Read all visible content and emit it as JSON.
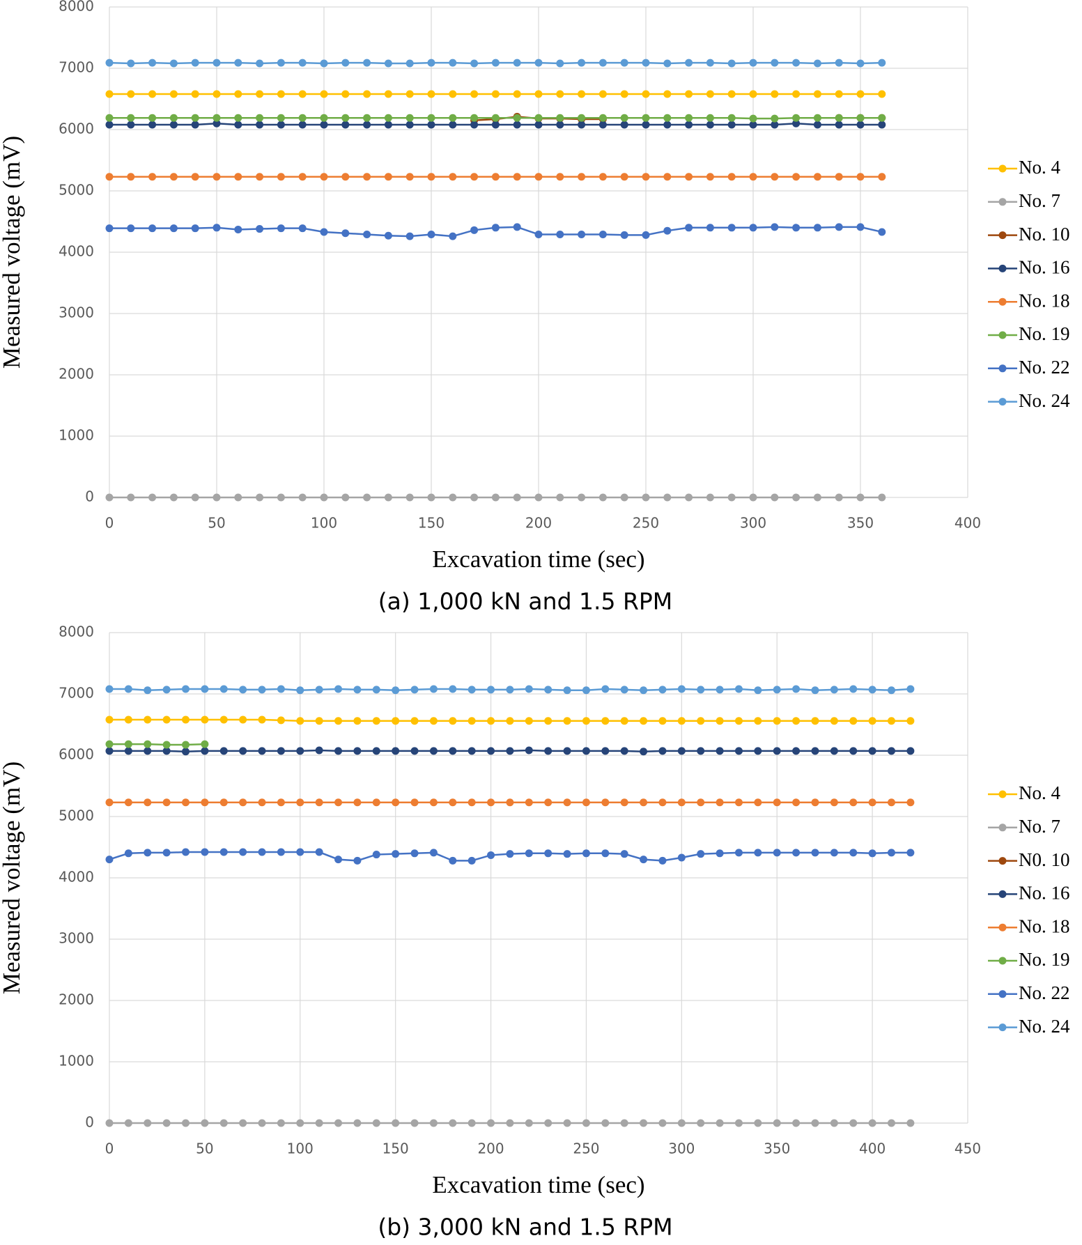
{
  "chart_data": [
    {
      "type": "line",
      "caption": "(a) 1,000 kN and 1.5 RPM",
      "x_label": "Excavation time (sec)",
      "y_label": "Measured voltage (mV)",
      "x": [
        0,
        10,
        20,
        30,
        40,
        50,
        60,
        70,
        80,
        90,
        100,
        110,
        120,
        130,
        140,
        150,
        160,
        170,
        180,
        190,
        200,
        210,
        220,
        230,
        240,
        250,
        260,
        270,
        280,
        290,
        300,
        310,
        320,
        330,
        340,
        350,
        360
      ],
      "xlim": [
        0,
        400
      ],
      "xticks": [
        0,
        50,
        100,
        150,
        200,
        250,
        300,
        350,
        400
      ],
      "ylim": [
        0,
        8000
      ],
      "yticks": [
        0,
        1000,
        2000,
        3000,
        4000,
        5000,
        6000,
        7000,
        8000
      ],
      "grid": true,
      "legend": "right",
      "series": [
        {
          "name": "No. 4",
          "color": "#FFC000",
          "values": [
            6580,
            6580,
            6580,
            6580,
            6580,
            6580,
            6580,
            6580,
            6580,
            6580,
            6580,
            6580,
            6580,
            6580,
            6580,
            6580,
            6580,
            6580,
            6580,
            6580,
            6580,
            6580,
            6580,
            6580,
            6580,
            6580,
            6580,
            6580,
            6580,
            6580,
            6580,
            6580,
            6580,
            6580,
            6580,
            6580,
            6580
          ]
        },
        {
          "name": "No. 7",
          "color": "#A5A5A5",
          "values": [
            0,
            0,
            0,
            0,
            0,
            0,
            0,
            0,
            0,
            0,
            0,
            0,
            0,
            0,
            0,
            0,
            0,
            0,
            0,
            0,
            0,
            0,
            0,
            0,
            0,
            0,
            0,
            0,
            0,
            0,
            0,
            0,
            0,
            0,
            0,
            0,
            0
          ]
        },
        {
          "name": "No. 10",
          "color": "#9E480E",
          "values": [
            null,
            null,
            null,
            null,
            null,
            null,
            null,
            null,
            null,
            null,
            null,
            null,
            null,
            null,
            null,
            null,
            null,
            6150,
            6170,
            6210,
            6180,
            6180,
            6170,
            6170,
            null,
            null,
            null,
            null,
            null,
            null,
            null,
            null,
            null,
            null,
            6190,
            6190,
            6190
          ]
        },
        {
          "name": "No. 16",
          "color": "#264478",
          "values": [
            6080,
            6080,
            6080,
            6080,
            6080,
            6100,
            6080,
            6080,
            6080,
            6080,
            6080,
            6080,
            6080,
            6080,
            6080,
            6080,
            6080,
            6080,
            6080,
            6080,
            6080,
            6080,
            6080,
            6080,
            6080,
            6080,
            6080,
            6080,
            6080,
            6080,
            6080,
            6080,
            6100,
            6080,
            6080,
            6080,
            6080
          ]
        },
        {
          "name": "No. 18",
          "color": "#ED7D31",
          "values": [
            5230,
            5230,
            5230,
            5230,
            5230,
            5230,
            5230,
            5230,
            5230,
            5230,
            5230,
            5230,
            5230,
            5230,
            5230,
            5230,
            5230,
            5230,
            5230,
            5230,
            5230,
            5230,
            5230,
            5230,
            5230,
            5230,
            5230,
            5230,
            5230,
            5230,
            5230,
            5230,
            5230,
            5230,
            5230,
            5230,
            5230
          ]
        },
        {
          "name": "No. 19",
          "color": "#70AD47",
          "values": [
            6190,
            6190,
            6190,
            6190,
            6190,
            6190,
            6190,
            6190,
            6190,
            6190,
            6190,
            6190,
            6190,
            6190,
            6190,
            6190,
            6190,
            6190,
            6190,
            6190,
            6190,
            6190,
            6190,
            6190,
            6190,
            6190,
            6190,
            6190,
            6190,
            6190,
            6180,
            6180,
            6190,
            6190,
            6190,
            6190,
            6190
          ]
        },
        {
          "name": "No. 22",
          "color": "#4472C4",
          "values": [
            4390,
            4390,
            4390,
            4390,
            4390,
            4400,
            4370,
            4380,
            4390,
            4390,
            4330,
            4310,
            4290,
            4270,
            4260,
            4290,
            4260,
            4360,
            4400,
            4410,
            4290,
            4290,
            4290,
            4290,
            4280,
            4280,
            4350,
            4400,
            4400,
            4400,
            4400,
            4410,
            4400,
            4400,
            4410,
            4410,
            4330
          ]
        },
        {
          "name": "No. 24",
          "color": "#5B9BD5",
          "values": [
            7090,
            7080,
            7090,
            7080,
            7090,
            7090,
            7090,
            7080,
            7090,
            7090,
            7080,
            7090,
            7090,
            7080,
            7080,
            7090,
            7090,
            7080,
            7090,
            7090,
            7090,
            7080,
            7090,
            7090,
            7090,
            7090,
            7080,
            7090,
            7090,
            7080,
            7090,
            7090,
            7090,
            7080,
            7090,
            7080,
            7090
          ]
        }
      ]
    },
    {
      "type": "line",
      "caption": "(b) 3,000 kN and 1.5 RPM",
      "x_label": "Excavation time (sec)",
      "y_label": "Measured voltage (mV)",
      "x": [
        0,
        10,
        20,
        30,
        40,
        50,
        60,
        70,
        80,
        90,
        100,
        110,
        120,
        130,
        140,
        150,
        160,
        170,
        180,
        190,
        200,
        210,
        220,
        230,
        240,
        250,
        260,
        270,
        280,
        290,
        300,
        310,
        320,
        330,
        340,
        350,
        360,
        370,
        380,
        390,
        400,
        410,
        420
      ],
      "xlim": [
        0,
        450
      ],
      "xticks": [
        0,
        50,
        100,
        150,
        200,
        250,
        300,
        350,
        400,
        450
      ],
      "ylim": [
        0,
        8000
      ],
      "yticks": [
        0,
        1000,
        2000,
        3000,
        4000,
        5000,
        6000,
        7000,
        8000
      ],
      "grid": true,
      "legend": "right",
      "series": [
        {
          "name": "No. 4",
          "color": "#FFC000",
          "values": [
            6580,
            6580,
            6580,
            6580,
            6580,
            6580,
            6580,
            6580,
            6580,
            6570,
            6560,
            6560,
            6560,
            6560,
            6560,
            6560,
            6560,
            6560,
            6560,
            6560,
            6560,
            6560,
            6560,
            6560,
            6560,
            6560,
            6560,
            6560,
            6560,
            6560,
            6560,
            6560,
            6560,
            6560,
            6560,
            6560,
            6560,
            6560,
            6560,
            6560,
            6560,
            6560,
            6560
          ]
        },
        {
          "name": "No. 7",
          "color": "#A5A5A5",
          "values": [
            0,
            0,
            0,
            0,
            0,
            0,
            0,
            0,
            0,
            0,
            0,
            0,
            0,
            0,
            0,
            0,
            0,
            0,
            0,
            0,
            0,
            0,
            0,
            0,
            0,
            0,
            0,
            0,
            0,
            0,
            0,
            0,
            0,
            0,
            0,
            0,
            0,
            0,
            0,
            0,
            0,
            0,
            0
          ]
        },
        {
          "name": "N0. 10",
          "color": "#9E480E",
          "values": [
            null,
            null,
            null,
            null,
            null,
            null,
            null,
            null,
            null,
            null,
            null,
            null,
            null,
            null,
            null,
            null,
            null,
            null,
            null,
            null,
            null,
            null,
            null,
            null,
            null,
            null,
            null,
            null,
            null,
            null,
            null,
            null,
            null,
            null,
            null,
            null,
            null,
            null,
            null,
            null,
            null,
            null,
            null
          ]
        },
        {
          "name": "No. 16",
          "color": "#264478",
          "values": [
            6070,
            6070,
            6070,
            6070,
            6060,
            6070,
            6070,
            6070,
            6070,
            6070,
            6070,
            6080,
            6070,
            6070,
            6070,
            6070,
            6070,
            6070,
            6070,
            6070,
            6070,
            6070,
            6080,
            6070,
            6070,
            6070,
            6070,
            6070,
            6060,
            6070,
            6070,
            6070,
            6070,
            6070,
            6070,
            6070,
            6070,
            6070,
            6070,
            6070,
            6070,
            6070,
            6070
          ]
        },
        {
          "name": "No. 18",
          "color": "#ED7D31",
          "values": [
            5230,
            5230,
            5230,
            5230,
            5230,
            5230,
            5230,
            5230,
            5230,
            5230,
            5230,
            5230,
            5230,
            5230,
            5230,
            5230,
            5230,
            5230,
            5230,
            5230,
            5230,
            5230,
            5230,
            5230,
            5230,
            5230,
            5230,
            5230,
            5230,
            5230,
            5230,
            5230,
            5230,
            5230,
            5230,
            5230,
            5230,
            5230,
            5230,
            5230,
            5230,
            5230,
            5230
          ]
        },
        {
          "name": "No. 19",
          "color": "#70AD47",
          "values": [
            6180,
            6180,
            6180,
            6170,
            6170,
            6180,
            null,
            null,
            null,
            null,
            null,
            null,
            null,
            null,
            null,
            null,
            null,
            null,
            null,
            null,
            null,
            null,
            null,
            null,
            null,
            null,
            null,
            null,
            null,
            null,
            null,
            null,
            null,
            null,
            null,
            null,
            null,
            null,
            null,
            null,
            null,
            null,
            null
          ]
        },
        {
          "name": "No. 22",
          "color": "#4472C4",
          "values": [
            4300,
            4400,
            4410,
            4410,
            4420,
            4420,
            4420,
            4420,
            4420,
            4420,
            4420,
            4420,
            4300,
            4280,
            4380,
            4390,
            4400,
            4410,
            4280,
            4280,
            4370,
            4390,
            4400,
            4400,
            4390,
            4400,
            4400,
            4390,
            4300,
            4280,
            4330,
            4390,
            4400,
            4410,
            4410,
            4410,
            4410,
            4410,
            4410,
            4410,
            4400,
            4410,
            4410
          ]
        },
        {
          "name": "No. 24",
          "color": "#5B9BD5",
          "values": [
            7080,
            7080,
            7060,
            7070,
            7080,
            7080,
            7080,
            7070,
            7070,
            7080,
            7060,
            7070,
            7080,
            7070,
            7070,
            7060,
            7070,
            7080,
            7080,
            7070,
            7070,
            7070,
            7080,
            7070,
            7060,
            7060,
            7080,
            7070,
            7060,
            7070,
            7080,
            7070,
            7070,
            7080,
            7060,
            7070,
            7080,
            7060,
            7070,
            7080,
            7070,
            7060,
            7080
          ]
        }
      ]
    }
  ]
}
